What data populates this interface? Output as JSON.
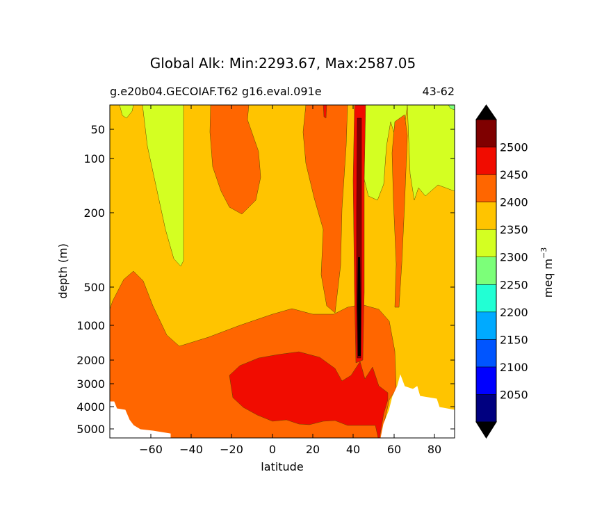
{
  "chart_data": {
    "type": "heatmap",
    "title": "Global Alk: Min:2293.67, Max:2587.05",
    "subtitle_left": "g.e20b04.GECOIAF.T62 g16.eval.091e",
    "subtitle_right": "43-62",
    "xlabel": "latitude",
    "ylabel": "depth (m)",
    "xlim": [
      -80,
      90
    ],
    "x_ticks": [
      -60,
      -40,
      -20,
      0,
      20,
      40,
      60,
      80
    ],
    "x_tick_labels": [
      "−60",
      "−40",
      "−20",
      "0",
      "20",
      "40",
      "60",
      "80"
    ],
    "y_ticks": [
      50,
      100,
      200,
      500,
      1000,
      2000,
      3000,
      4000,
      5000
    ],
    "y_tick_labels": [
      "50",
      "100",
      "200",
      "500",
      "1000",
      "2000",
      "3000",
      "4000",
      "5000"
    ],
    "colorbar": {
      "label": "meq m",
      "label_superscript": "−3",
      "ticks": [
        "2050",
        "2100",
        "2150",
        "2200",
        "2250",
        "2300",
        "2350",
        "2400",
        "2450",
        "2500"
      ],
      "levels": [
        2000,
        2050,
        2100,
        2150,
        2200,
        2250,
        2300,
        2350,
        2400,
        2450,
        2500,
        2550
      ],
      "colors": [
        "#000080",
        "#0000ff",
        "#0055ff",
        "#00aaff",
        "#22ffd4",
        "#7cff79",
        "#d4ff22",
        "#ffc400",
        "#ff6600",
        "#f10c00",
        "#7f0000"
      ],
      "extend": "both",
      "extend_low_color": "#000000",
      "extend_high_color": "#000000"
    },
    "regions": [
      {
        "level": "2350-2400",
        "color": "#ffc400",
        "desc": "background fill, most of domain"
      },
      {
        "level": "2300-2350",
        "color": "#d4ff22",
        "desc": "upper ocean near 55S and north of 45N"
      },
      {
        "level": "2400-2450",
        "color": "#ff6600",
        "desc": "upper central band, deep southern/central basin"
      },
      {
        "level": "2450-2500",
        "color": "#f10c00",
        "desc": "deep basin around 0-50N"
      },
      {
        "level": "2500-2550",
        "color": "#7f0000",
        "desc": "narrow column near 43N"
      }
    ]
  }
}
